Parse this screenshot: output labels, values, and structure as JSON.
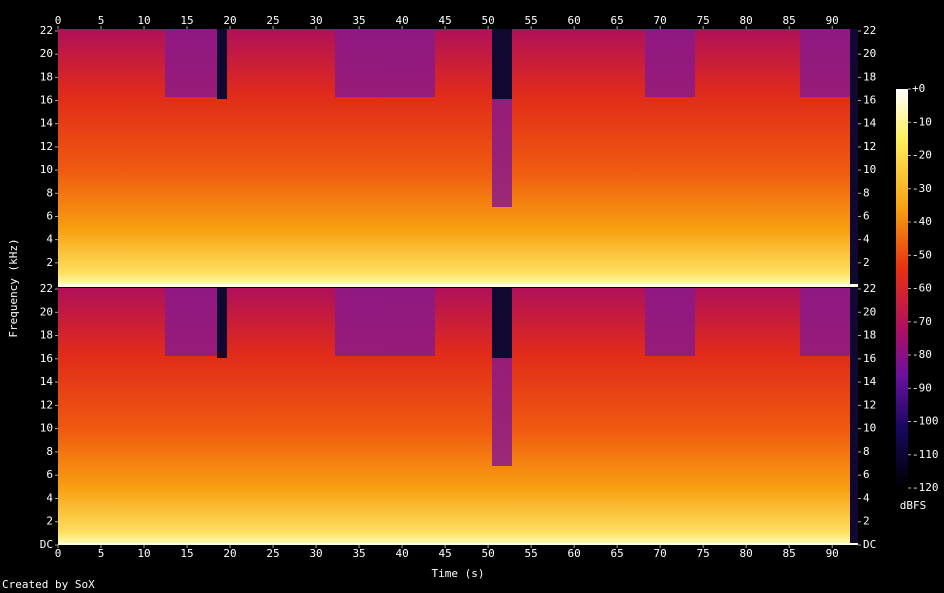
{
  "chart_data": {
    "type": "spectrogram",
    "xlabel": "Time (s)",
    "ylabel": "Frequency (kHz)",
    "xlim": [
      0,
      93
    ],
    "xticks": [
      0,
      5,
      10,
      15,
      20,
      25,
      30,
      35,
      40,
      45,
      50,
      55,
      60,
      65,
      70,
      75,
      80,
      85,
      90
    ],
    "ylim": [
      0,
      22
    ],
    "channels": [
      {
        "yticks": [
          2,
          4,
          6,
          8,
          10,
          12,
          14,
          16,
          18,
          20,
          22
        ]
      },
      {
        "yticks": [
          {
            "value": 0,
            "label": "DC"
          },
          2,
          4,
          6,
          8,
          10,
          12,
          14,
          16,
          18,
          20,
          22
        ]
      }
    ],
    "colorbar": {
      "label": "dBFS",
      "lim": [
        -120,
        0
      ],
      "ticks": [
        {
          "value": 0,
          "label": "+0"
        },
        -10,
        -20,
        -30,
        -40,
        -50,
        -60,
        -70,
        -80,
        -90,
        -100,
        -110,
        -120
      ]
    },
    "credit": "Created by SoX"
  }
}
